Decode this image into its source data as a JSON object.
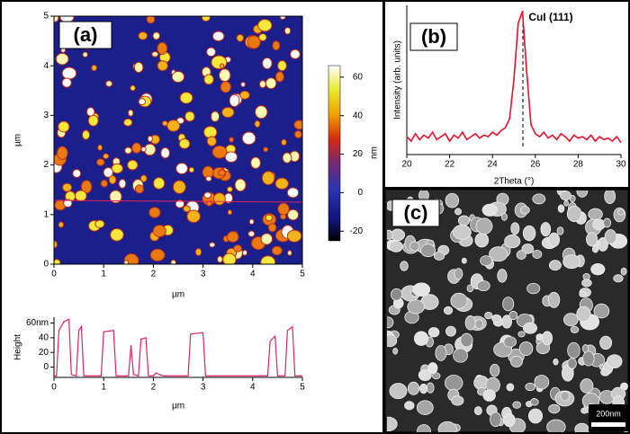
{
  "chart_data": [
    {
      "type": "image",
      "label": "(a)",
      "xlabel": "µm",
      "ylabel": "µm",
      "xlim": [
        0,
        5
      ],
      "ylim": [
        0,
        5
      ],
      "xticks": [
        0,
        1,
        2,
        3,
        4,
        5
      ],
      "yticks": [
        0,
        1,
        2,
        3,
        4,
        5
      ],
      "colorbar": {
        "label": "nm",
        "lim": [
          -25,
          66
        ],
        "ticks": [
          -20,
          0,
          20,
          40,
          60
        ]
      }
    },
    {
      "type": "line",
      "xlabel": "µm",
      "ylabel": "Height",
      "xlim": [
        0,
        5
      ],
      "ylim": [
        -14,
        68
      ],
      "xticks": [
        0,
        1,
        2,
        3,
        4,
        5
      ],
      "yticks": [
        0,
        20,
        40,
        {
          "value": 60,
          "label": "60nm"
        }
      ],
      "x": [
        0,
        0.05,
        0.1,
        0.2,
        0.3,
        0.35,
        0.45,
        0.5,
        0.55,
        0.6,
        0.95,
        1.0,
        1.2,
        1.25,
        1.5,
        1.55,
        1.6,
        1.7,
        1.75,
        1.85,
        1.9,
        2.0,
        2.05,
        2.2,
        2.7,
        2.75,
        3.0,
        3.05,
        4.3,
        4.35,
        4.45,
        4.5,
        4.65,
        4.7,
        4.8,
        4.85,
        5.0
      ],
      "series": [
        {
          "color": "#e0245e",
          "values": [
            -12,
            -12,
            50,
            62,
            65,
            -10,
            -12,
            50,
            55,
            -12,
            -12,
            48,
            50,
            -12,
            -12,
            30,
            -10,
            -12,
            38,
            40,
            -12,
            -12,
            -8,
            -12,
            -12,
            45,
            47,
            -12,
            -12,
            35,
            42,
            -12,
            -12,
            50,
            55,
            -12,
            -12
          ]
        }
      ]
    },
    {
      "type": "line",
      "label": "(b)",
      "annotation": "CuI (111)",
      "xlabel": "2Theta (°)",
      "ylabel": "Intensity (arb. units)",
      "xlim": [
        20,
        30
      ],
      "ylim": [
        0,
        100
      ],
      "xticks": [
        20,
        22,
        24,
        26,
        28,
        30
      ],
      "x": [
        20.0,
        20.2,
        20.4,
        20.6,
        20.8,
        21.0,
        21.2,
        21.4,
        21.6,
        21.8,
        22.0,
        22.2,
        22.4,
        22.6,
        22.8,
        23.0,
        23.2,
        23.4,
        23.6,
        23.8,
        24.0,
        24.2,
        24.4,
        24.6,
        24.8,
        25.0,
        25.2,
        25.4,
        25.6,
        25.8,
        26.0,
        26.2,
        26.4,
        26.6,
        26.8,
        27.0,
        27.2,
        27.4,
        27.6,
        27.8,
        28.0,
        28.2,
        28.4,
        28.6,
        28.8,
        29.0,
        29.2,
        29.4,
        29.6,
        29.8,
        30.0
      ],
      "series": [
        {
          "color": "#e8102a",
          "values": [
            12,
            9,
            14,
            10,
            13,
            11,
            15,
            10,
            12,
            14,
            9,
            13,
            11,
            15,
            10,
            12,
            14,
            11,
            13,
            12,
            15,
            13,
            16,
            18,
            24,
            50,
            88,
            96,
            55,
            20,
            14,
            12,
            15,
            11,
            13,
            10,
            14,
            12,
            9,
            13,
            11,
            12,
            10,
            13,
            9,
            12,
            10,
            11,
            9,
            12,
            8
          ]
        }
      ]
    },
    {
      "type": "micrograph",
      "label": "(c)",
      "scale_bar": "200nm"
    }
  ]
}
